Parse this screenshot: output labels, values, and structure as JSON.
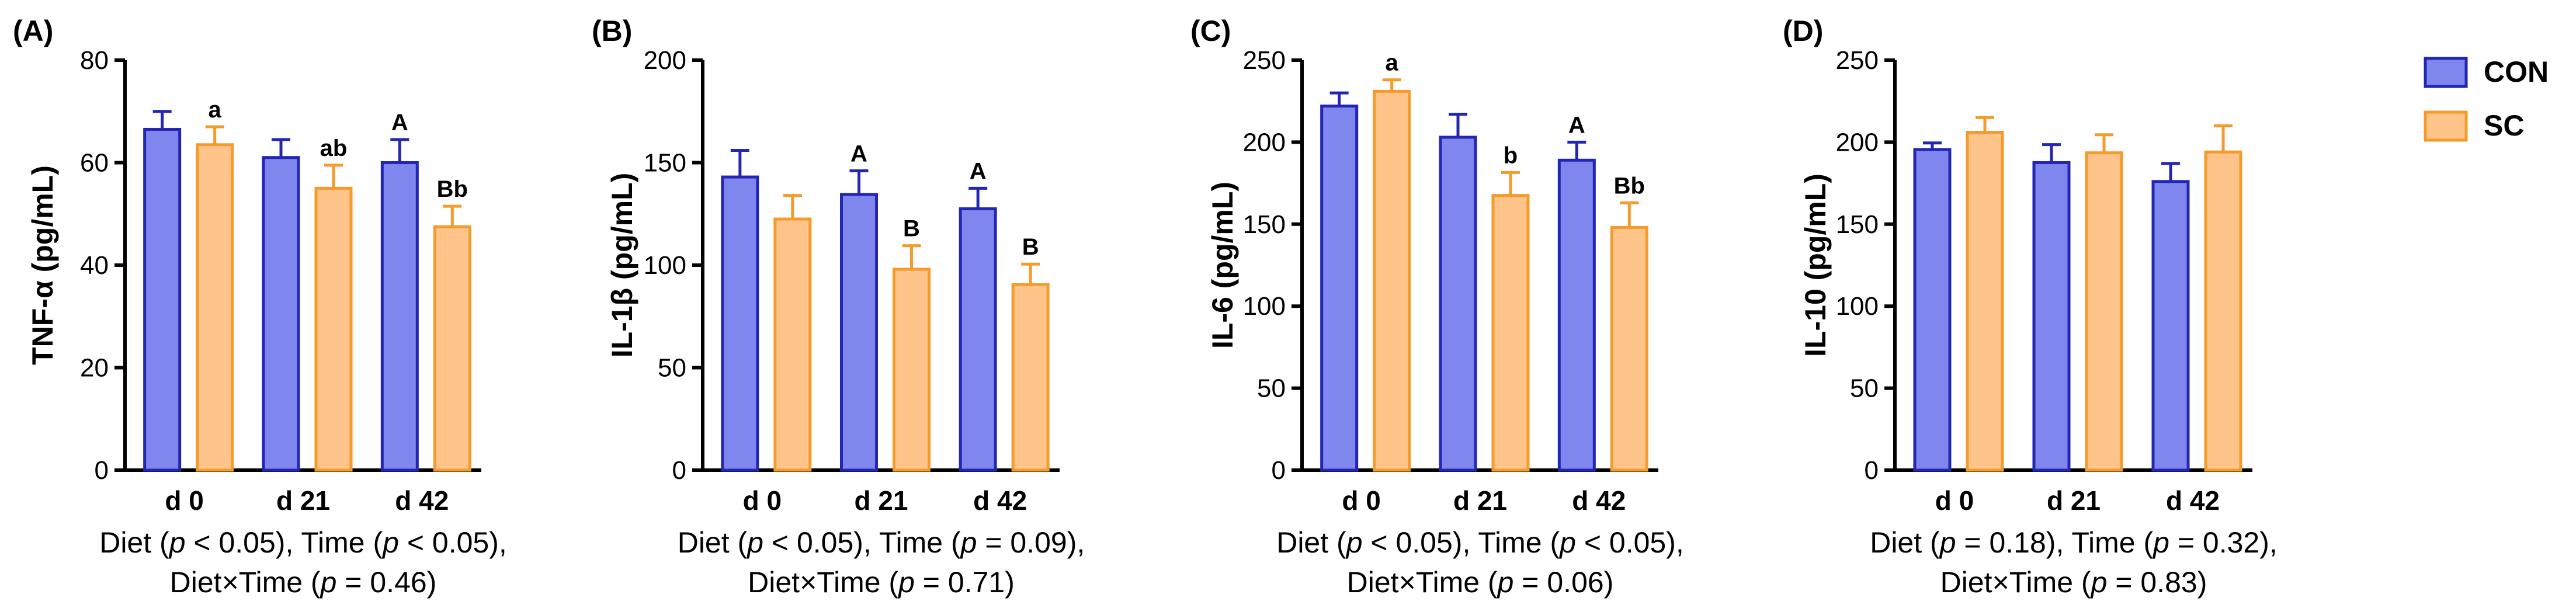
{
  "colors": {
    "con_fill": "#7F86EE",
    "con_stroke": "#2326B5",
    "sc_fill": "#FFC48A",
    "sc_stroke": "#F49B2C"
  },
  "legend": [
    {
      "key": "con",
      "label": "CON"
    },
    {
      "key": "sc",
      "label": "SC"
    }
  ],
  "chart_data": [
    {
      "type": "bar",
      "panel": "(A)",
      "ylabel": "TNF-α (pg/mL)",
      "ylim": [
        0,
        80
      ],
      "yticks": [
        0,
        20,
        40,
        60,
        80
      ],
      "categories": [
        "d 0",
        "d 21",
        "d 42"
      ],
      "series": [
        {
          "name": "CON",
          "values": [
            66.5,
            61,
            60
          ],
          "errors": [
            3.5,
            3.5,
            4.5
          ],
          "letters": [
            "",
            "",
            "A"
          ]
        },
        {
          "name": "SC",
          "values": [
            63.5,
            55,
            47.5
          ],
          "errors": [
            3.5,
            4.5,
            4
          ],
          "letters": [
            "a",
            "ab",
            "Bb"
          ]
        }
      ],
      "footnote": [
        [
          {
            "t": "Diet ("
          },
          {
            "t": "p",
            "i": true
          },
          {
            "t": " < 0.05), Time ("
          },
          {
            "t": "p",
            "i": true
          },
          {
            "t": " < 0.05),"
          }
        ],
        [
          {
            "t": "Diet×Time ("
          },
          {
            "t": "p",
            "i": true
          },
          {
            "t": " = 0.46)"
          }
        ]
      ]
    },
    {
      "type": "bar",
      "panel": "(B)",
      "ylabel": "IL-1β (pg/mL)",
      "ylim": [
        0,
        200
      ],
      "yticks": [
        0,
        50,
        100,
        150,
        200
      ],
      "categories": [
        "d 0",
        "d 21",
        "d 42"
      ],
      "series": [
        {
          "name": "CON",
          "values": [
            143,
            134.5,
            127.5
          ],
          "errors": [
            13,
            11.5,
            10
          ],
          "letters": [
            "",
            "A",
            "A"
          ]
        },
        {
          "name": "SC",
          "values": [
            122.5,
            98,
            90.5
          ],
          "errors": [
            11.5,
            11.5,
            10
          ],
          "letters": [
            "",
            "B",
            "B"
          ]
        }
      ],
      "footnote": [
        [
          {
            "t": "Diet ("
          },
          {
            "t": "p",
            "i": true
          },
          {
            "t": " < 0.05), Time ("
          },
          {
            "t": "p",
            "i": true
          },
          {
            "t": " = 0.09),"
          }
        ],
        [
          {
            "t": "Diet×Time ("
          },
          {
            "t": "p",
            "i": true
          },
          {
            "t": " = 0.71)"
          }
        ]
      ]
    },
    {
      "type": "bar",
      "panel": "(C)",
      "ylabel": "IL-6 (pg/mL)",
      "ylim": [
        0,
        250
      ],
      "yticks": [
        0,
        50,
        100,
        150,
        200,
        250
      ],
      "categories": [
        "d 0",
        "d 21",
        "d 42"
      ],
      "series": [
        {
          "name": "CON",
          "values": [
            222,
            203,
            189
          ],
          "errors": [
            8,
            14,
            11
          ],
          "letters": [
            "",
            "",
            "A"
          ]
        },
        {
          "name": "SC",
          "values": [
            231,
            167.5,
            148
          ],
          "errors": [
            7,
            14,
            15
          ],
          "letters": [
            "a",
            "b",
            "Bb"
          ]
        }
      ],
      "footnote": [
        [
          {
            "t": "Diet ("
          },
          {
            "t": "p",
            "i": true
          },
          {
            "t": " < 0.05), Time ("
          },
          {
            "t": "p",
            "i": true
          },
          {
            "t": " < 0.05),"
          }
        ],
        [
          {
            "t": "Diet×Time ("
          },
          {
            "t": "p",
            "i": true
          },
          {
            "t": " = 0.06)"
          }
        ]
      ]
    },
    {
      "type": "bar",
      "panel": "(D)",
      "ylabel": "IL-10 (pg/mL)",
      "ylim": [
        0,
        250
      ],
      "yticks": [
        0,
        50,
        100,
        150,
        200,
        250
      ],
      "categories": [
        "d 0",
        "d 21",
        "d 42"
      ],
      "series": [
        {
          "name": "CON",
          "values": [
            195.5,
            187.5,
            176
          ],
          "errors": [
            4,
            11,
            11
          ],
          "letters": [
            "",
            "",
            ""
          ]
        },
        {
          "name": "SC",
          "values": [
            206,
            193.5,
            194
          ],
          "errors": [
            9,
            11,
            16
          ],
          "letters": [
            "",
            "",
            ""
          ]
        }
      ],
      "footnote": [
        [
          {
            "t": "Diet ("
          },
          {
            "t": "p",
            "i": true
          },
          {
            "t": " = 0.18), Time ("
          },
          {
            "t": "p",
            "i": true
          },
          {
            "t": " = 0.32),"
          }
        ],
        [
          {
            "t": "Diet×Time ("
          },
          {
            "t": "p",
            "i": true
          },
          {
            "t": " = 0.83)"
          }
        ]
      ]
    }
  ]
}
